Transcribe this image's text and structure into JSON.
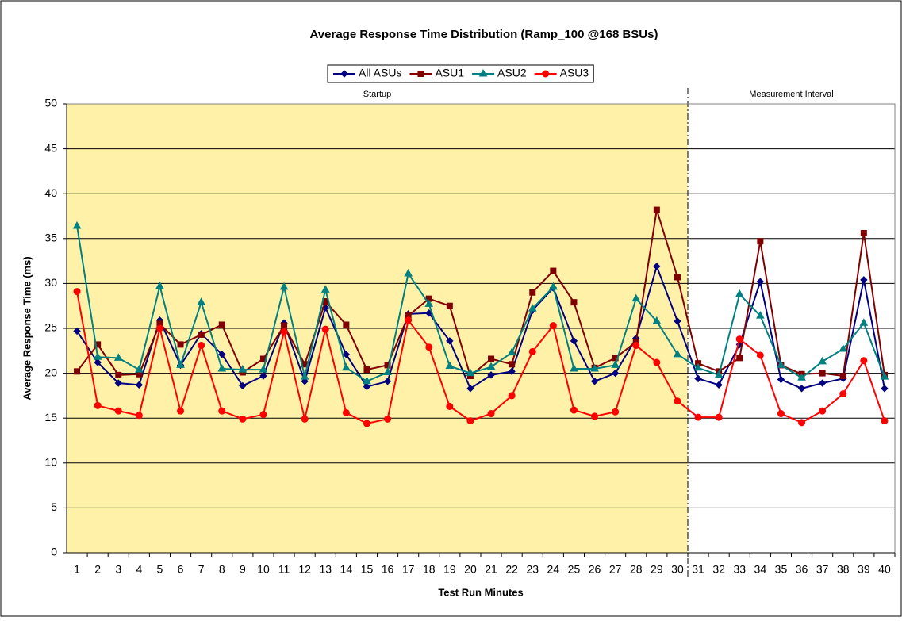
{
  "chart_data": {
    "type": "line",
    "title": "Average Response Time Distribution (Ramp_100 @168 BSUs)",
    "x_label": "Test Run Minutes",
    "y_label": "Average Response Time (ms)",
    "categories": [
      1,
      2,
      3,
      4,
      5,
      6,
      7,
      8,
      9,
      10,
      11,
      12,
      13,
      14,
      15,
      16,
      17,
      18,
      19,
      20,
      21,
      22,
      23,
      24,
      25,
      26,
      27,
      28,
      29,
      30,
      31,
      32,
      33,
      34,
      35,
      36,
      37,
      38,
      39,
      40
    ],
    "ylim": [
      0,
      50
    ],
    "yticks": [
      0,
      5,
      10,
      15,
      20,
      25,
      30,
      35,
      40,
      45,
      50
    ],
    "grid": true,
    "legend": "top",
    "regions": [
      {
        "label": "Startup",
        "start": 1,
        "end": 30,
        "color": "#fff2a8"
      },
      {
        "label": "Measurement Interval",
        "start": 31,
        "end": 40,
        "color": "#ffffff"
      }
    ],
    "series": [
      {
        "name": "All ASUs",
        "color": "#000080",
        "marker": "diamond",
        "values": [
          24.7,
          21.2,
          18.9,
          18.7,
          25.9,
          20.9,
          24.4,
          22.1,
          18.6,
          19.7,
          25.6,
          19.1,
          27.3,
          22.1,
          18.5,
          19.1,
          26.6,
          26.7,
          23.6,
          18.3,
          19.8,
          20.2,
          27.0,
          29.5,
          23.6,
          19.1,
          20.0,
          23.9,
          31.9,
          25.8,
          19.4,
          18.7,
          23.2,
          30.2,
          19.3,
          18.3,
          18.9,
          19.4,
          30.4,
          18.3
        ]
      },
      {
        "name": "ASU1",
        "color": "#800000",
        "marker": "square",
        "values": [
          20.2,
          23.2,
          19.8,
          19.9,
          25.5,
          23.2,
          24.3,
          25.4,
          20.1,
          21.6,
          25.3,
          21.0,
          28.0,
          25.4,
          20.4,
          20.9,
          26.4,
          28.3,
          27.5,
          19.7,
          21.6,
          21.0,
          29.0,
          31.4,
          27.9,
          20.6,
          21.7,
          23.5,
          38.2,
          30.7,
          21.1,
          20.2,
          21.7,
          34.7,
          20.9,
          19.9,
          20.0,
          19.7,
          35.6,
          19.8
        ]
      },
      {
        "name": "ASU2",
        "color": "#008080",
        "marker": "triangle",
        "values": [
          36.4,
          21.8,
          21.7,
          20.4,
          29.7,
          20.9,
          27.9,
          20.5,
          20.4,
          20.4,
          29.6,
          19.6,
          29.3,
          20.6,
          19.1,
          20.1,
          31.1,
          27.7,
          20.8,
          20.0,
          20.7,
          22.3,
          27.2,
          29.6,
          20.5,
          20.5,
          20.9,
          28.3,
          25.8,
          22.1,
          20.6,
          19.8,
          28.8,
          26.4,
          20.9,
          19.5,
          21.3,
          22.7,
          25.6,
          19.6
        ]
      },
      {
        "name": "ASU3",
        "color": "#ff0000",
        "marker": "circle",
        "values": [
          29.1,
          16.4,
          15.8,
          15.3,
          25.0,
          15.8,
          23.1,
          15.8,
          14.9,
          15.4,
          24.6,
          14.9,
          24.9,
          15.6,
          14.4,
          14.9,
          25.9,
          22.9,
          16.3,
          14.7,
          15.5,
          17.5,
          22.4,
          25.3,
          15.9,
          15.2,
          15.7,
          23.1,
          21.2,
          16.9,
          15.1,
          15.1,
          23.8,
          22.0,
          15.5,
          14.5,
          15.8,
          17.7,
          21.4,
          14.7
        ]
      }
    ]
  }
}
